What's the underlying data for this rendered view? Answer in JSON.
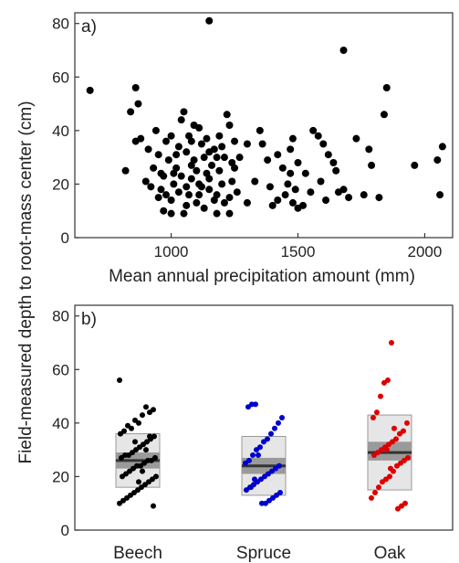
{
  "figure": {
    "ylabel": "Field-measured depth to root-mass center (cm)"
  },
  "chart_data": [
    {
      "type": "scatter",
      "panel_label": "a)",
      "xlabel": "Mean annual precipitation amount (mm)",
      "ylabel": "Field-measured depth to root-mass center (cm)",
      "xlim": [
        620,
        2110
      ],
      "ylim": [
        0,
        84
      ],
      "x_ticks": [
        1000,
        1500,
        2000
      ],
      "x_tick_labels": [
        "1000",
        "1500",
        "2000"
      ],
      "y_ticks": [
        0,
        20,
        40,
        60,
        80
      ],
      "y_tick_labels": [
        "0",
        "20",
        "40",
        "60",
        "80"
      ],
      "grid": false,
      "marker_color": "#000000",
      "points": [
        [
          680,
          55
        ],
        [
          1150,
          81
        ],
        [
          1680,
          70
        ],
        [
          840,
          47
        ],
        [
          860,
          56
        ],
        [
          870,
          50
        ],
        [
          860,
          36
        ],
        [
          880,
          37
        ],
        [
          820,
          25
        ],
        [
          900,
          21
        ],
        [
          950,
          15
        ],
        [
          970,
          10
        ],
        [
          1000,
          9
        ],
        [
          1850,
          56
        ],
        [
          1840,
          46
        ],
        [
          1820,
          15
        ],
        [
          2070,
          34
        ],
        [
          2050,
          29
        ],
        [
          2060,
          16
        ],
        [
          1960,
          27
        ],
        [
          1780,
          33
        ],
        [
          1790,
          27
        ],
        [
          1760,
          16
        ],
        [
          1730,
          37
        ],
        [
          1680,
          18
        ],
        [
          1700,
          15
        ],
        [
          1620,
          31
        ],
        [
          1640,
          28
        ],
        [
          1600,
          35
        ],
        [
          1560,
          40
        ],
        [
          1580,
          38
        ],
        [
          1590,
          21
        ],
        [
          1480,
          37
        ],
        [
          1500,
          28
        ],
        [
          1470,
          24
        ],
        [
          1460,
          20
        ],
        [
          1450,
          16
        ],
        [
          1480,
          13
        ],
        [
          1500,
          11
        ],
        [
          1520,
          12
        ],
        [
          1420,
          31
        ],
        [
          1380,
          29
        ],
        [
          1390,
          19
        ],
        [
          1400,
          12
        ],
        [
          1330,
          21
        ],
        [
          1300,
          13
        ],
        [
          1360,
          35
        ],
        [
          1250,
          36
        ],
        [
          1230,
          42
        ],
        [
          1220,
          46
        ],
        [
          1190,
          38
        ],
        [
          1210,
          30
        ],
        [
          1250,
          26
        ],
        [
          1200,
          20
        ],
        [
          1230,
          15
        ],
        [
          1180,
          9
        ],
        [
          1170,
          14
        ],
        [
          1150,
          18
        ],
        [
          1140,
          24
        ],
        [
          1130,
          30
        ],
        [
          1120,
          35
        ],
        [
          1110,
          41
        ],
        [
          1090,
          29
        ],
        [
          1080,
          22
        ],
        [
          1070,
          16
        ],
        [
          1060,
          12
        ],
        [
          1050,
          9
        ],
        [
          1060,
          32
        ],
        [
          1070,
          38
        ],
        [
          1040,
          44
        ],
        [
          1050,
          47
        ],
        [
          1030,
          34
        ],
        [
          1020,
          26
        ],
        [
          1010,
          20
        ],
        [
          1000,
          14
        ],
        [
          990,
          29
        ],
        [
          980,
          36
        ],
        [
          970,
          23
        ],
        [
          960,
          18
        ],
        [
          950,
          31
        ],
        [
          940,
          40
        ],
        [
          930,
          26
        ],
        [
          920,
          19
        ],
        [
          910,
          33
        ],
        [
          1100,
          25
        ],
        [
          1110,
          20
        ],
        [
          1100,
          13
        ],
        [
          1130,
          11
        ],
        [
          1160,
          27
        ],
        [
          1170,
          33
        ],
        [
          1190,
          25
        ],
        [
          1200,
          34
        ],
        [
          1240,
          21
        ],
        [
          1260,
          17
        ],
        [
          1270,
          30
        ],
        [
          1180,
          16
        ],
        [
          1140,
          37
        ],
        [
          1020,
          31
        ],
        [
          1040,
          23
        ],
        [
          1060,
          19
        ],
        [
          1080,
          36
        ],
        [
          1090,
          42
        ],
        [
          1000,
          38
        ],
        [
          980,
          16
        ],
        [
          1120,
          19
        ],
        [
          1150,
          32
        ],
        [
          1210,
          13
        ],
        [
          1240,
          28
        ],
        [
          1550,
          17
        ],
        [
          1610,
          14
        ],
        [
          1530,
          24
        ],
        [
          1440,
          26
        ],
        [
          1420,
          14
        ],
        [
          1350,
          40
        ],
        [
          1300,
          35
        ],
        [
          1660,
          17
        ],
        [
          1650,
          25
        ],
        [
          1490,
          18
        ],
        [
          1470,
          33
        ],
        [
          1230,
          9
        ],
        [
          1110,
          16
        ],
        [
          1080,
          27
        ],
        [
          1010,
          24
        ],
        [
          960,
          24
        ],
        [
          1030,
          17
        ],
        [
          1150,
          22
        ],
        [
          1180,
          30
        ]
      ]
    },
    {
      "type": "box_strip",
      "panel_label": "b)",
      "ylabel": "Field-measured depth to root-mass center (cm)",
      "ylim": [
        0,
        84
      ],
      "y_ticks": [
        0,
        20,
        40,
        60,
        80
      ],
      "y_tick_labels": [
        "0",
        "20",
        "40",
        "60",
        "80"
      ],
      "categories": [
        "Beech",
        "Spruce",
        "Oak"
      ],
      "grid": false,
      "series": [
        {
          "category": "Beech",
          "color": "#000000",
          "box": {
            "q1": 16,
            "median": 26,
            "q3": 36,
            "ci_low": 23,
            "ci_high": 29
          },
          "points": [
            56,
            45,
            44,
            46,
            43,
            40,
            41,
            38,
            39,
            37,
            36,
            35,
            34,
            33,
            32,
            31,
            30,
            29,
            28,
            28,
            27,
            27,
            26,
            26,
            25,
            24,
            24,
            23,
            22,
            21,
            20,
            20,
            19,
            18,
            17,
            16,
            15,
            14,
            13,
            12,
            11,
            10,
            9,
            35,
            30,
            22,
            18,
            33
          ]
        },
        {
          "category": "Spruce",
          "color": "#0000cc",
          "box": {
            "q1": 13,
            "median": 24,
            "q3": 35,
            "ci_low": 21,
            "ci_high": 27
          },
          "points": [
            47,
            47,
            46,
            42,
            40,
            38,
            36,
            34,
            33,
            31,
            30,
            28,
            26,
            25,
            24,
            23,
            22,
            21,
            20,
            19,
            18,
            17,
            16,
            15,
            14,
            13,
            12,
            11,
            10,
            10,
            28,
            19,
            16
          ]
        },
        {
          "category": "Oak",
          "color": "#dd0000",
          "box": {
            "q1": 15,
            "median": 29,
            "q3": 43,
            "ci_low": 26,
            "ci_high": 33
          },
          "points": [
            70,
            56,
            55,
            50,
            44,
            42,
            40,
            37,
            36,
            34,
            33,
            32,
            31,
            30,
            29,
            28,
            27,
            26,
            25,
            24,
            22,
            20,
            19,
            18,
            16,
            14,
            12,
            10,
            9,
            8,
            38,
            23,
            30
          ]
        }
      ]
    }
  ]
}
